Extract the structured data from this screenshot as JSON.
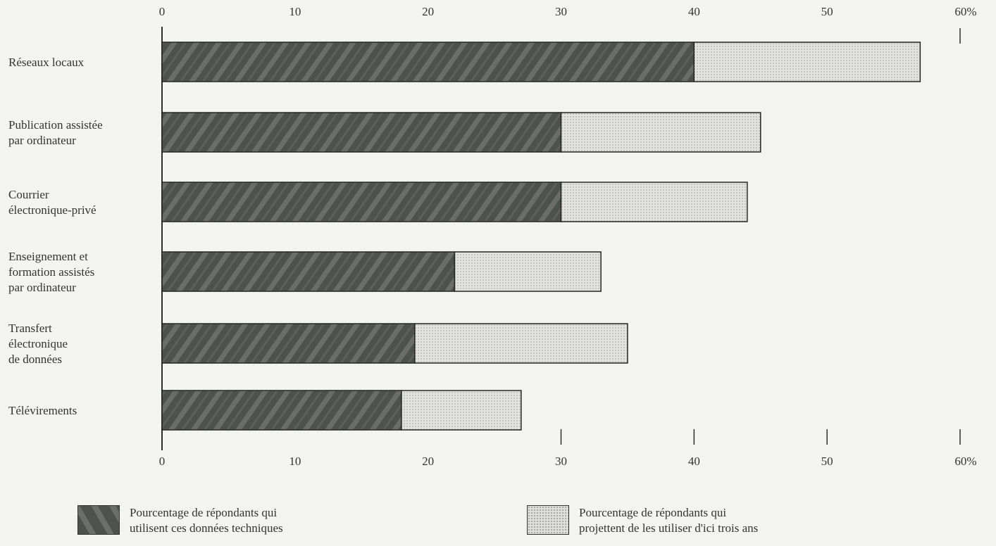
{
  "chart_data": {
    "type": "bar",
    "orientation": "horizontal",
    "stacked": true,
    "categories": [
      "Réseaux locaux",
      "Publication assistée par ordinateur",
      "Courrier électronique-privé",
      "Enseignement et formation assistés par ordinateur",
      "Transfert électronique de données",
      "Télévirements"
    ],
    "category_lines": [
      [
        "Réseaux locaux"
      ],
      [
        "Publication assistée",
        "par ordinateur"
      ],
      [
        "Courrier",
        "électronique-privé"
      ],
      [
        "Enseignement et",
        "formation assistés",
        "par ordinateur"
      ],
      [
        "Transfert",
        "électronique",
        "de données"
      ],
      [
        "Télévirements"
      ]
    ],
    "series": [
      {
        "name": "Pourcentage de répondants qui utilisent ces données techniques",
        "values": [
          40,
          30,
          30,
          22,
          19,
          18
        ],
        "color": "#4e524e"
      },
      {
        "name": "Pourcentage de répondants qui projettent de les utiliser d'ici trois ans",
        "values": [
          17,
          15,
          14,
          11,
          16,
          9
        ],
        "color": "#dedfdb"
      }
    ],
    "xlim": [
      0,
      60
    ],
    "ticks": [
      0,
      10,
      20,
      30,
      40,
      50,
      60
    ],
    "tick_labels": [
      "0",
      "10",
      "20",
      "30",
      "40",
      "50",
      "60%"
    ],
    "grid": false,
    "legend_position": "bottom"
  },
  "legend": {
    "used_lines": [
      "Pourcentage de répondants qui",
      "utilisent ces données techniques"
    ],
    "planned_lines": [
      "Pourcentage de répondants qui",
      "projettent de les utiliser d'ici trois ans"
    ]
  }
}
